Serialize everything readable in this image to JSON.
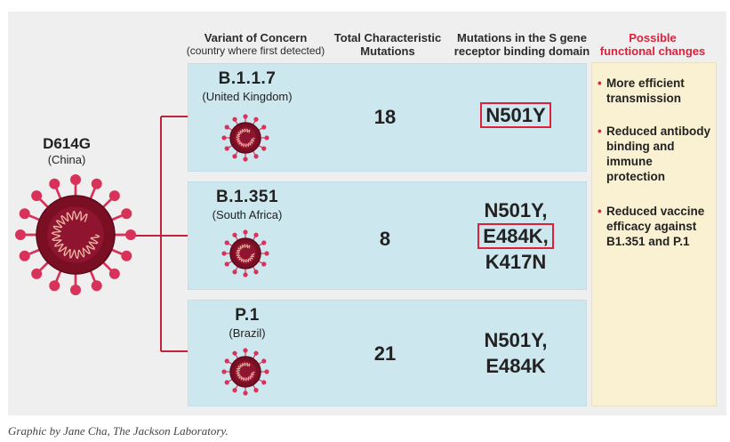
{
  "headers": {
    "variant": "Variant of Concern",
    "variant_sub": "(country where first detected)",
    "total_line1": "Total Characteristic",
    "total_line2": "Mutations",
    "mut_line1": "Mutations in the S gene",
    "mut_line2": "receptor binding domain",
    "func_line1": "Possible",
    "func_line2": "functional changes"
  },
  "origin": {
    "name": "D614G",
    "country": "(China)"
  },
  "variants": [
    {
      "name": "B.1.1.7",
      "country": "(United Kingdom)",
      "count": "18",
      "mutations": [
        "N501Y"
      ],
      "highlight": [
        0
      ]
    },
    {
      "name": "B.1.351",
      "country": "(South Africa)",
      "count": "8",
      "mutations": [
        "N501Y,",
        "E484K,",
        "K417N"
      ],
      "highlight": [
        1
      ]
    },
    {
      "name": "P.1",
      "country": "(Brazil)",
      "count": "21",
      "mutations": [
        "N501Y,",
        "E484K"
      ],
      "highlight": []
    }
  ],
  "functional_changes": [
    "More efficient transmission",
    "Reduced antibody binding and immune protection",
    "Reduced vaccine efficacy against B1.351 and P.1"
  ],
  "caption": "Graphic by Jane Cha, The Jackson Laboratory.",
  "colors": {
    "accent": "#e0203a",
    "row_bg": "#cde7ef",
    "func_bg": "#faf1d2",
    "virus_core": "#7a0f24",
    "virus_spike": "#d8325a",
    "connector": "#c0243c"
  }
}
